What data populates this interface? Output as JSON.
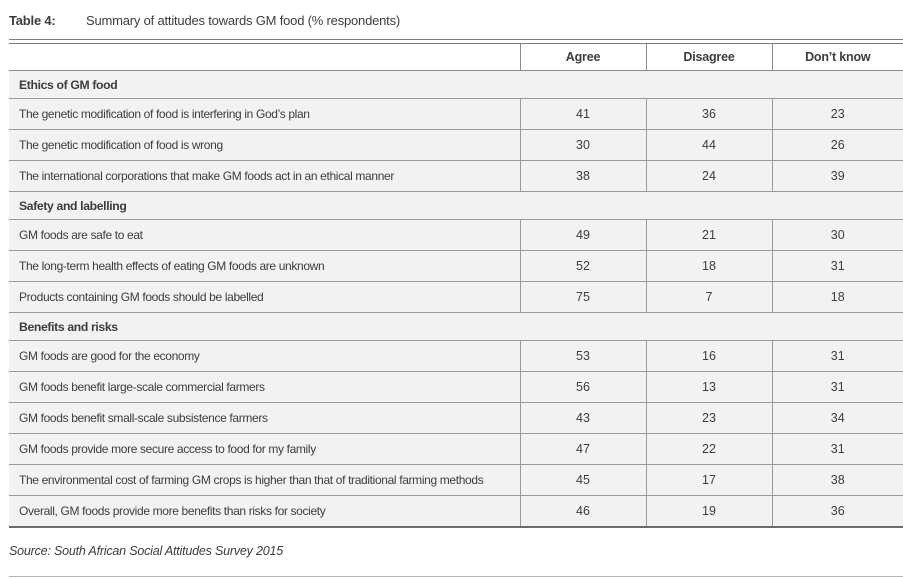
{
  "caption": {
    "label": "Table 4:",
    "text": "Summary of attitudes towards GM food (% respondents)"
  },
  "table": {
    "columns": [
      "Agree",
      "Disagree",
      "Don’t know"
    ],
    "sections": [
      {
        "header": "Ethics of GM food",
        "rows": [
          {
            "label": "The genetic modification of food is interfering in God’s plan",
            "values": [
              41,
              36,
              23
            ]
          },
          {
            "label": "The genetic modification of food is wrong",
            "values": [
              30,
              44,
              26
            ]
          },
          {
            "label": "The international corporations that make GM foods act in an ethical manner",
            "values": [
              38,
              24,
              39
            ]
          }
        ]
      },
      {
        "header": "Safety and labelling",
        "rows": [
          {
            "label": "GM foods are safe to eat",
            "values": [
              49,
              21,
              30
            ]
          },
          {
            "label": "The long-term health effects of eating GM foods are unknown",
            "values": [
              52,
              18,
              31
            ]
          },
          {
            "label": "Products containing GM foods should be labelled",
            "values": [
              75,
              7,
              18
            ]
          }
        ]
      },
      {
        "header": "Benefits and risks",
        "rows": [
          {
            "label": "GM foods are good for the economy",
            "values": [
              53,
              16,
              31
            ]
          },
          {
            "label": "GM foods benefit large-scale commercial farmers",
            "values": [
              56,
              13,
              31
            ]
          },
          {
            "label": "GM foods benefit small-scale subsistence farmers",
            "values": [
              43,
              23,
              34
            ]
          },
          {
            "label": "GM foods provide more secure access to food for my family",
            "values": [
              47,
              22,
              31
            ]
          },
          {
            "label": "The environmental cost of farming GM crops is higher than that of traditional farming methods",
            "values": [
              45,
              17,
              38
            ]
          },
          {
            "label": "Overall, GM foods provide more benefits than risks for society",
            "values": [
              46,
              19,
              36
            ]
          }
        ]
      }
    ]
  },
  "source": "Source: South African Social Attitudes Survey 2015",
  "colors": {
    "row_background": "#f2f2f2",
    "border": "#9a9a9a",
    "rule": "#7d7d7d",
    "text": "#3d3d3d"
  }
}
